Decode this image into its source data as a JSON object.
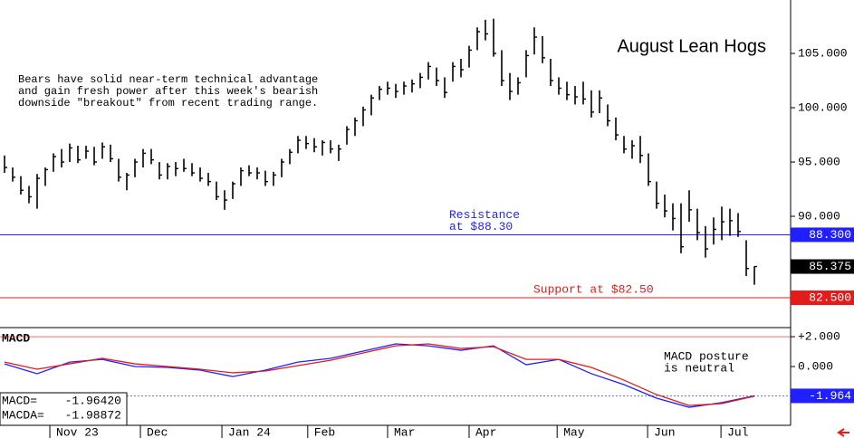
{
  "chart_data": [
    {
      "type": "ohlc",
      "title": "August Lean Hogs",
      "annotation": [
        "Bears have solid near-term technical advantage",
        "and gain fresh power after this week's bearish",
        "downside \"breakout\" from recent trading range."
      ],
      "x": [
        0,
        1,
        2,
        3,
        4,
        5,
        6,
        7,
        8,
        9,
        10,
        11,
        12,
        13,
        14,
        15,
        16,
        17,
        18,
        19,
        20,
        21,
        22,
        23,
        24,
        25,
        26,
        27,
        28,
        29,
        30,
        31,
        32,
        33,
        34,
        35,
        36,
        37,
        38,
        39,
        40,
        41,
        42,
        43,
        44,
        45,
        46,
        47,
        48,
        49,
        50,
        51,
        52,
        53,
        54,
        55,
        56,
        57,
        58,
        59,
        60,
        61,
        62,
        63,
        64,
        65,
        66,
        67,
        68,
        69,
        70,
        71,
        72,
        73,
        74,
        75,
        76,
        77,
        78,
        79,
        80,
        81,
        82,
        83,
        84,
        85,
        86,
        87,
        88,
        89,
        90,
        91,
        92
      ],
      "high": [
        95.6,
        94.5,
        93.7,
        92.8,
        93.9,
        94.5,
        95.8,
        96.2,
        96.7,
        96.5,
        96.5,
        96.4,
        96.8,
        96.6,
        95.3,
        94.0,
        95.3,
        96.2,
        96.2,
        95.0,
        94.9,
        95.0,
        95.3,
        94.9,
        94.5,
        94.0,
        93.2,
        92.4,
        93.2,
        94.5,
        94.7,
        94.5,
        94.2,
        94.1,
        95.3,
        96.2,
        97.4,
        97.4,
        97.2,
        97.0,
        97.0,
        96.6,
        98.3,
        99.1,
        100.1,
        101.2,
        102.0,
        102.4,
        102.2,
        102.4,
        102.6,
        103.2,
        104.2,
        103.7,
        102.8,
        104.2,
        104.5,
        105.7,
        107.4,
        108.1,
        108.2,
        105.3,
        103.2,
        102.8,
        105.3,
        107.4,
        106.6,
        104.5,
        102.8,
        102.4,
        102.0,
        102.4,
        101.6,
        101.6,
        100.3,
        99.1,
        97.4,
        97.0,
        97.4,
        95.8,
        93.2,
        92.0,
        91.2,
        91.2,
        92.4,
        90.7,
        89.1,
        89.9,
        90.9,
        90.7,
        90.3,
        87.8,
        85.4
      ],
      "low": [
        94.0,
        93.2,
        92.0,
        91.2,
        90.7,
        92.8,
        94.1,
        94.5,
        95.0,
        94.9,
        95.3,
        94.7,
        95.3,
        95.0,
        93.2,
        92.4,
        93.6,
        94.5,
        94.8,
        93.4,
        93.4,
        93.7,
        94.1,
        93.7,
        93.2,
        92.8,
        91.5,
        90.6,
        91.6,
        92.8,
        93.7,
        93.4,
        92.8,
        92.8,
        93.6,
        94.8,
        95.8,
        96.2,
        95.9,
        95.6,
        95.8,
        95.1,
        96.6,
        97.4,
        98.3,
        99.3,
        100.7,
        101.2,
        100.9,
        101.2,
        101.4,
        101.8,
        102.6,
        102.0,
        100.9,
        102.4,
        102.8,
        103.7,
        105.3,
        106.2,
        104.7,
        102.0,
        100.7,
        101.2,
        102.8,
        104.9,
        104.1,
        102.0,
        101.2,
        100.7,
        100.3,
        100.3,
        99.1,
        99.5,
        98.3,
        97.0,
        95.8,
        95.3,
        94.9,
        92.8,
        90.7,
        89.9,
        88.7,
        86.6,
        89.5,
        87.8,
        86.2,
        87.4,
        87.8,
        88.2,
        88.1,
        84.5,
        83.7
      ],
      "close": [
        94.5,
        93.6,
        92.4,
        91.8,
        93.5,
        94.3,
        95.5,
        95.0,
        96.3,
        95.2,
        96.0,
        95.0,
        96.4,
        95.3,
        93.6,
        93.8,
        95.0,
        95.8,
        95.2,
        93.8,
        94.6,
        94.4,
        94.4,
        94.0,
        93.5,
        93.2,
        91.8,
        91.5,
        93.0,
        94.2,
        94.0,
        94.0,
        93.2,
        93.8,
        95.0,
        95.9,
        97.0,
        96.7,
        96.4,
        96.8,
        96.2,
        96.2,
        98.0,
        98.8,
        99.8,
        100.9,
        101.7,
        101.8,
        101.5,
        102.0,
        102.2,
        102.8,
        103.8,
        102.5,
        101.4,
        103.8,
        103.5,
        105.3,
        107.0,
        106.8,
        105.0,
        102.5,
        101.5,
        102.3,
        104.8,
        106.5,
        104.6,
        102.5,
        101.8,
        101.2,
        101.0,
        100.8,
        99.6,
        100.9,
        98.8,
        97.5,
        96.2,
        96.5,
        95.6,
        93.2,
        91.2,
        90.5,
        89.8,
        87.2,
        90.6,
        88.5,
        87.0,
        88.8,
        89.5,
        89.6,
        88.6,
        85.2,
        85.375
      ],
      "color": "#000000",
      "xlim": [
        -0.556,
        96.444
      ],
      "ylim": [
        79.92,
        109.92
      ],
      "yticks": [
        {
          "value": 90,
          "label": "90.000"
        },
        {
          "value": 95,
          "label": "95.000"
        },
        {
          "value": 100,
          "label": "100.000"
        },
        {
          "value": 105,
          "label": "105.000"
        }
      ],
      "levels": [
        {
          "value": 88.3,
          "label": "88.300",
          "note": [
            "Resistance",
            "at $88.30"
          ],
          "color": "#1f1fff"
        },
        {
          "value": 82.5,
          "label": "82.500",
          "note": [
            "Support at $82.50"
          ],
          "color": "#e31b1b"
        }
      ]
    },
    {
      "type": "line",
      "title": "MACD",
      "annotation": [
        "MACD posture",
        "is neutral"
      ],
      "x": [
        0,
        4,
        8,
        12,
        16,
        20,
        24,
        28,
        32,
        36,
        40,
        44,
        48,
        52,
        56,
        60,
        64,
        68,
        72,
        76,
        80,
        84,
        88,
        92
      ],
      "series": [
        {
          "name": "MACD=",
          "color": "#1f1fff",
          "values": [
            0.18,
            -0.48,
            0.3,
            0.48,
            0,
            -0.06,
            -0.24,
            -0.67,
            -0.24,
            0.3,
            0.55,
            1.03,
            1.52,
            1.39,
            1.09,
            1.39,
            0.12,
            0.48,
            -0.48,
            -1.21,
            -2.12,
            -2.73,
            -2.42,
            -1.9642
          ],
          "value_labels": [
            null,
            null,
            null,
            null,
            null,
            null,
            null,
            null,
            null,
            null,
            null,
            null,
            null,
            null,
            null,
            null,
            null,
            null,
            null,
            null,
            null,
            null,
            null,
            "-1.96420"
          ]
        },
        {
          "name": "MACDA=",
          "color": "#e31b1b",
          "values": [
            0.3,
            -0.18,
            0.18,
            0.55,
            0.18,
            0,
            -0.18,
            -0.42,
            -0.3,
            0.06,
            0.42,
            0.91,
            1.39,
            1.52,
            1.21,
            1.33,
            0.48,
            0.48,
            -0.06,
            -0.91,
            -1.88,
            -2.61,
            -2.48,
            -1.98872
          ],
          "value_labels": [
            null,
            null,
            null,
            null,
            null,
            null,
            null,
            null,
            null,
            null,
            null,
            null,
            null,
            null,
            null,
            null,
            null,
            null,
            null,
            null,
            null,
            null,
            null,
            "-1.98872"
          ]
        }
      ],
      "xlim": [
        -0.556,
        96.444
      ],
      "ylim": [
        -3.94,
        2.61
      ],
      "yticks": [
        {
          "value": 2,
          "label": "+2.000"
        },
        {
          "value": 0,
          "label": "0.000"
        }
      ],
      "marker": {
        "value": -1.9642,
        "label": "-1.964",
        "color": "#1f1fff"
      },
      "xticks": [
        {
          "value": 5.56,
          "label": "Nov 23"
        },
        {
          "value": 16.67,
          "label": "Dec"
        },
        {
          "value": 26.67,
          "label": "Jan 24"
        },
        {
          "value": 37.2,
          "label": "Feb"
        },
        {
          "value": 47,
          "label": "Mar"
        },
        {
          "value": 57,
          "label": "Apr"
        },
        {
          "value": 67.8,
          "label": "May"
        },
        {
          "value": 78.9,
          "label": "Jun"
        },
        {
          "value": 87.9,
          "label": "Jul"
        }
      ]
    }
  ]
}
